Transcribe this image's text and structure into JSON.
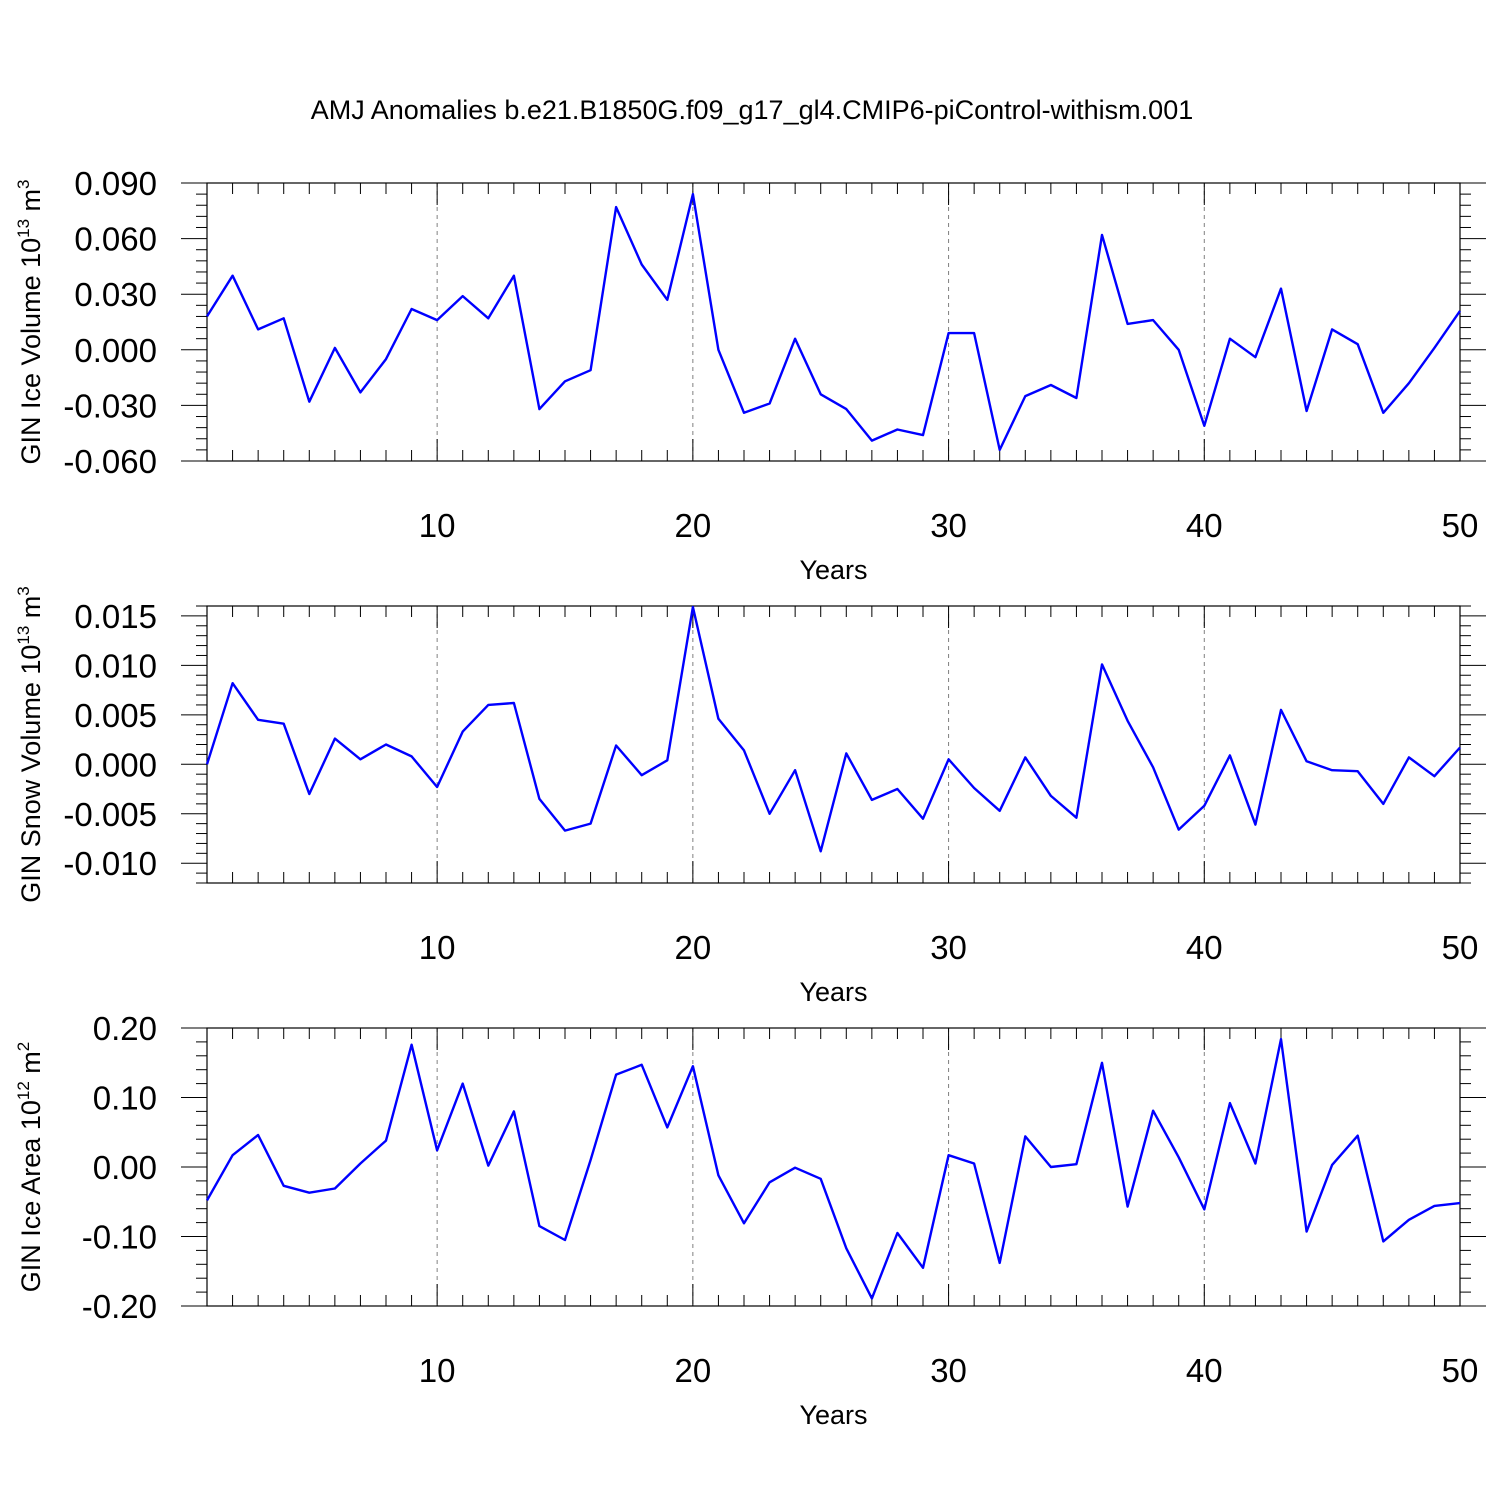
{
  "title": "AMJ Anomalies b.e21.B1850G.f09_g17_gl4.CMIP6-piControl-withism.001",
  "colors": {
    "line": "#0000ff",
    "grid": "#808080",
    "axis": "#000000"
  },
  "chart_data": [
    {
      "type": "line",
      "ylabel": "GIN Ice Volume 10",
      "ylabel_sup": "13",
      "ylabel_unit": "m",
      "ylabel_unit_sup": "3",
      "xlabel": "Years",
      "xlim": [
        1,
        50
      ],
      "ylim": [
        -0.06,
        0.09
      ],
      "yticks": [
        -0.06,
        -0.03,
        0.0,
        0.03,
        0.06,
        0.09
      ],
      "ytick_labels": [
        "-0.060",
        "-0.030",
        "0.000",
        "0.030",
        "0.060",
        "0.090"
      ],
      "xticks": [
        10,
        20,
        30,
        40,
        50
      ],
      "xtick_labels": [
        "10",
        "20",
        "30",
        "40",
        "50"
      ],
      "grid_x": [
        10,
        20,
        30,
        40
      ],
      "x": [
        1,
        2,
        3,
        4,
        5,
        6,
        7,
        8,
        9,
        10,
        11,
        12,
        13,
        14,
        15,
        16,
        17,
        18,
        19,
        20,
        21,
        22,
        23,
        24,
        25,
        26,
        27,
        28,
        29,
        30,
        31,
        32,
        33,
        34,
        35,
        36,
        37,
        38,
        39,
        40,
        41,
        42,
        43,
        44,
        45,
        46,
        47,
        48,
        49,
        50
      ],
      "values": [
        0.018,
        0.04,
        0.011,
        0.017,
        -0.028,
        0.001,
        -0.023,
        -0.005,
        0.022,
        0.016,
        0.029,
        0.017,
        0.04,
        -0.032,
        -0.017,
        -0.011,
        0.077,
        0.046,
        0.027,
        0.084,
        0.0,
        -0.034,
        -0.029,
        0.006,
        -0.024,
        -0.032,
        -0.049,
        -0.043,
        -0.046,
        0.009,
        0.009,
        -0.054,
        -0.025,
        -0.019,
        -0.026,
        0.062,
        0.014,
        0.016,
        0.0,
        -0.041,
        0.006,
        -0.004,
        0.033,
        -0.033,
        0.011,
        0.003,
        -0.034,
        -0.018,
        0.001,
        0.021
      ]
    },
    {
      "type": "line",
      "ylabel": "GIN Snow Volume 10",
      "ylabel_sup": "13",
      "ylabel_unit": "m",
      "ylabel_unit_sup": "3",
      "xlabel": "Years",
      "xlim": [
        1,
        50
      ],
      "ylim": [
        -0.012,
        0.016
      ],
      "yticks": [
        -0.01,
        -0.005,
        0.0,
        0.005,
        0.01,
        0.015
      ],
      "ytick_labels": [
        "-0.010",
        "-0.005",
        "0.000",
        "0.005",
        "0.010",
        "0.015"
      ],
      "xticks": [
        10,
        20,
        30,
        40,
        50
      ],
      "xtick_labels": [
        "10",
        "20",
        "30",
        "40",
        "50"
      ],
      "grid_x": [
        10,
        20,
        30,
        40
      ],
      "x": [
        1,
        2,
        3,
        4,
        5,
        6,
        7,
        8,
        9,
        10,
        11,
        12,
        13,
        14,
        15,
        16,
        17,
        18,
        19,
        20,
        21,
        22,
        23,
        24,
        25,
        26,
        27,
        28,
        29,
        30,
        31,
        32,
        33,
        34,
        35,
        36,
        37,
        38,
        39,
        40,
        41,
        42,
        43,
        44,
        45,
        46,
        47,
        48,
        49,
        50
      ],
      "values": [
        0.0,
        0.0082,
        0.0045,
        0.0041,
        -0.003,
        0.0026,
        0.0005,
        0.002,
        0.0008,
        -0.0023,
        0.0033,
        0.006,
        0.0062,
        -0.0035,
        -0.0067,
        -0.006,
        0.0019,
        -0.0011,
        0.0004,
        0.0159,
        0.0046,
        0.0014,
        -0.005,
        -0.0006,
        -0.0088,
        0.0011,
        -0.0036,
        -0.0025,
        -0.0055,
        0.0005,
        -0.0024,
        -0.0047,
        0.0007,
        -0.0032,
        -0.0054,
        0.0101,
        0.0044,
        -0.0003,
        -0.0066,
        -0.0042,
        0.0009,
        -0.0061,
        0.0055,
        0.0003,
        -0.0006,
        -0.0007,
        -0.004,
        0.0007,
        -0.0012,
        0.0017
      ]
    },
    {
      "type": "line",
      "ylabel": "GIN Ice Area 10",
      "ylabel_sup": "12",
      "ylabel_unit": "m",
      "ylabel_unit_sup": "2",
      "xlabel": "Years",
      "xlim": [
        1,
        50
      ],
      "ylim": [
        -0.2,
        0.2
      ],
      "yticks": [
        -0.2,
        -0.1,
        0.0,
        0.1,
        0.2
      ],
      "ytick_labels": [
        "-0.20",
        "-0.10",
        "0.00",
        "0.10",
        "0.20"
      ],
      "xticks": [
        10,
        20,
        30,
        40,
        50
      ],
      "xtick_labels": [
        "10",
        "20",
        "30",
        "40",
        "50"
      ],
      "grid_x": [
        10,
        20,
        30,
        40
      ],
      "x": [
        1,
        2,
        3,
        4,
        5,
        6,
        7,
        8,
        9,
        10,
        11,
        12,
        13,
        14,
        15,
        16,
        17,
        18,
        19,
        20,
        21,
        22,
        23,
        24,
        25,
        26,
        27,
        28,
        29,
        30,
        31,
        32,
        33,
        34,
        35,
        36,
        37,
        38,
        39,
        40,
        41,
        42,
        43,
        44,
        45,
        46,
        47,
        48,
        49,
        50
      ],
      "values": [
        -0.048,
        0.017,
        0.046,
        -0.027,
        -0.037,
        -0.031,
        0.005,
        0.038,
        0.176,
        0.024,
        0.12,
        0.002,
        0.08,
        -0.085,
        -0.105,
        0.01,
        0.133,
        0.147,
        0.057,
        0.145,
        -0.012,
        -0.081,
        -0.022,
        -0.001,
        -0.017,
        -0.117,
        -0.189,
        -0.095,
        -0.145,
        0.017,
        0.005,
        -0.138,
        0.044,
        0.0,
        0.004,
        0.15,
        -0.057,
        0.081,
        0.014,
        -0.061,
        0.092,
        0.005,
        0.184,
        -0.093,
        0.003,
        0.045,
        -0.107,
        -0.076,
        -0.056,
        -0.052
      ]
    }
  ]
}
